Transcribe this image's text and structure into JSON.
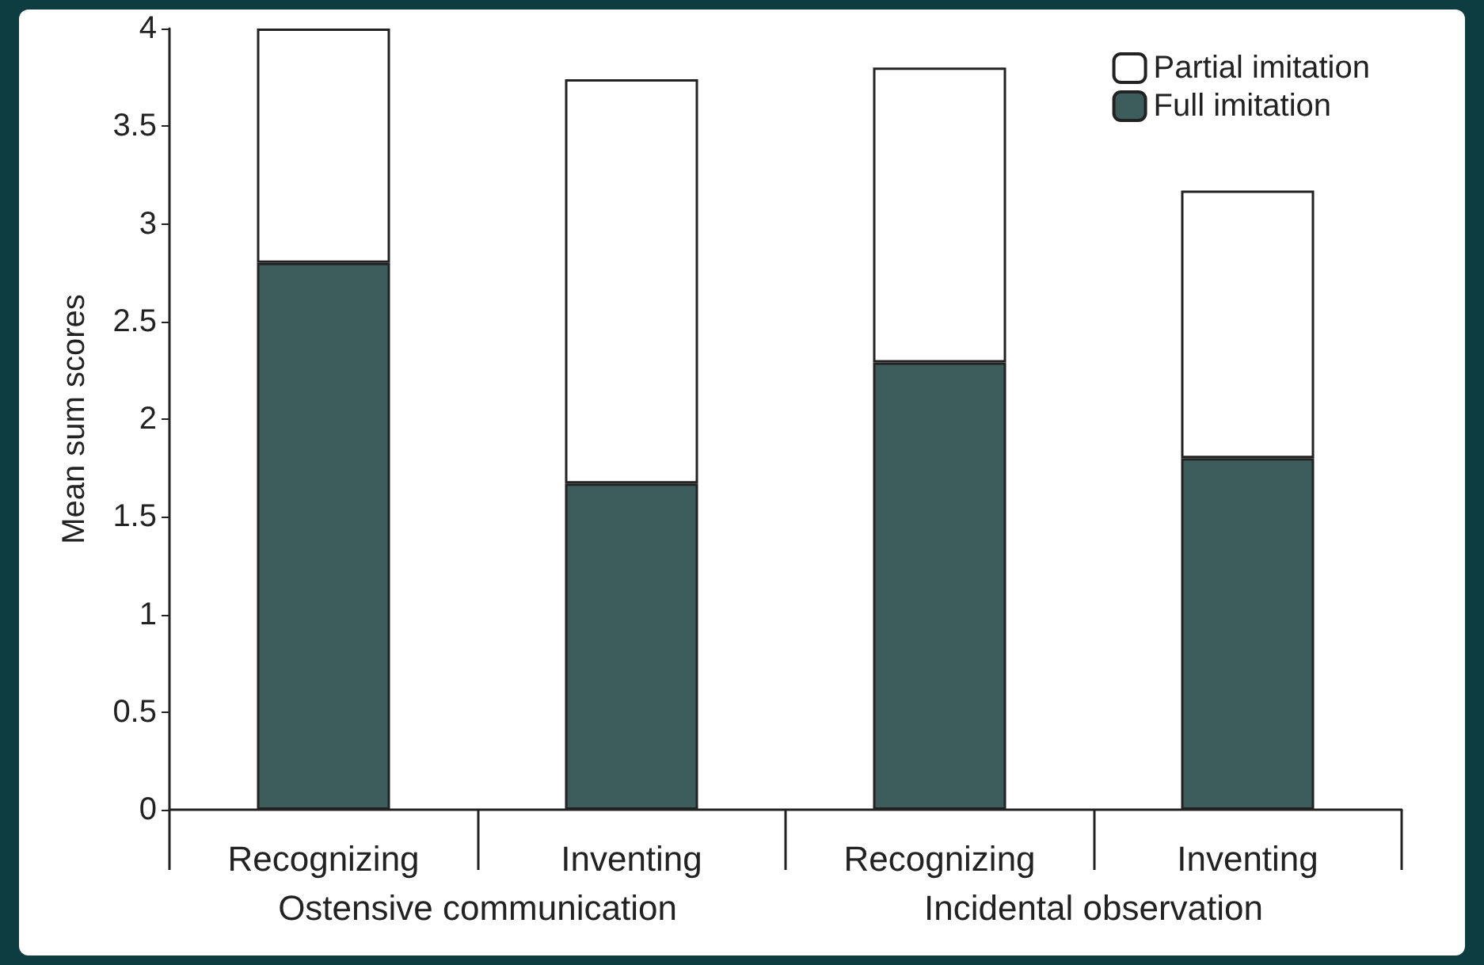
{
  "chart_data": {
    "type": "bar",
    "stacked": true,
    "ylabel": "Mean sum scores",
    "categories": [
      "Recognizing",
      "Inventing",
      "Recognizing",
      "Inventing"
    ],
    "series": [
      {
        "name": "Full imitation",
        "color": "#3d5c5c",
        "values": [
          2.8,
          1.67,
          2.29,
          1.8
        ]
      },
      {
        "name": "Partial imitation",
        "color": "#ffffff",
        "values": [
          1.2,
          2.07,
          1.51,
          1.37
        ]
      }
    ],
    "ylim": [
      0,
      4
    ],
    "yticks": [
      0,
      0.5,
      1,
      1.5,
      2,
      2.5,
      3,
      3.5,
      4
    ],
    "grid": false,
    "legend": "top right",
    "annotations": [
      "Ostensive communication",
      "Incidental observation"
    ]
  }
}
